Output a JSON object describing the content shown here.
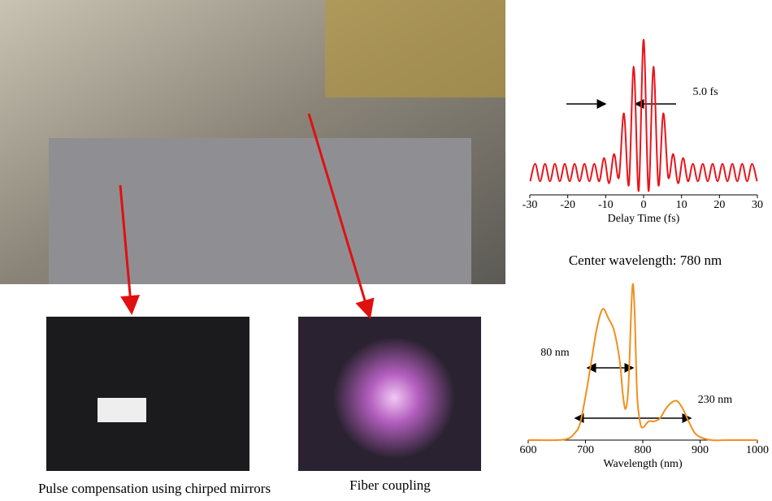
{
  "captions": {
    "left_photo": "Pulse compensation using chirped mirrors",
    "right_photo": "Fiber coupling",
    "center_wavelength": "Center wavelength:  780 nm"
  },
  "chart_data": [
    {
      "type": "line",
      "xlabel": "Delay Time (fs)",
      "color": "#e8141b",
      "x": [
        -29.9,
        -28.6,
        -27.3,
        -26,
        -24.7,
        -23.4,
        -22.1,
        -20.8,
        -19.5,
        -18.2,
        -16.9,
        -15.6,
        -14.3,
        -13,
        -11.7,
        -10.4,
        -9.1,
        -7.8,
        -6.5,
        -5.2,
        -3.9,
        -2.6,
        -1.3,
        0,
        1.3,
        2.6,
        3.9,
        5.2,
        6.5,
        7.8,
        9.1,
        10.4,
        11.7,
        13,
        14.3,
        15.6,
        16.9,
        18.2,
        19.5,
        20.8,
        22.1,
        23.4,
        24.7,
        26,
        27.3,
        28.6,
        29.9
      ],
      "values": [
        0.7,
        1.6,
        0.7,
        1.6,
        0.7,
        1.6,
        0.7,
        1.6,
        0.7,
        1.6,
        0.7,
        1.6,
        0.7,
        1.6,
        0.7,
        1.9,
        0.6,
        2.1,
        0.9,
        4.2,
        0.5,
        6.6,
        0.2,
        8.0,
        0.2,
        6.6,
        0.5,
        4.2,
        0.9,
        2.1,
        0.6,
        1.9,
        0.7,
        1.6,
        0.7,
        1.6,
        0.7,
        1.6,
        0.7,
        1.6,
        0.7,
        1.6,
        0.7,
        1.6,
        0.7,
        1.6,
        0.7
      ],
      "xlim": [
        -30,
        30
      ],
      "xticks": [
        -30,
        -20,
        -10,
        0,
        10,
        20,
        30
      ],
      "ylim": [
        0,
        8.7
      ],
      "annotations": [
        "5.0 fs"
      ]
    },
    {
      "type": "line",
      "xlabel": "Wavelength (nm)",
      "color": "#f0901e",
      "x": [
        600,
        650,
        670,
        680,
        690,
        700,
        710,
        720,
        730,
        740,
        750,
        760,
        765,
        770,
        775,
        780,
        783,
        786,
        790,
        795,
        800,
        810,
        820,
        830,
        840,
        850,
        860,
        870,
        880,
        890,
        900,
        920,
        950,
        1000
      ],
      "values": [
        0,
        0,
        0.01,
        0.04,
        0.1,
        0.28,
        0.5,
        0.72,
        0.84,
        0.78,
        0.7,
        0.5,
        0.3,
        0.2,
        0.35,
        0.85,
        1.0,
        0.8,
        0.3,
        0.12,
        0.08,
        0.12,
        0.12,
        0.14,
        0.2,
        0.24,
        0.25,
        0.2,
        0.12,
        0.05,
        0.02,
        0,
        0,
        0
      ],
      "xlim": [
        600,
        1000
      ],
      "xticks": [
        600,
        700,
        800,
        900,
        1000
      ],
      "ylim": [
        0,
        1.02
      ],
      "annotations": [
        "80 nm",
        "230 nm"
      ]
    }
  ]
}
